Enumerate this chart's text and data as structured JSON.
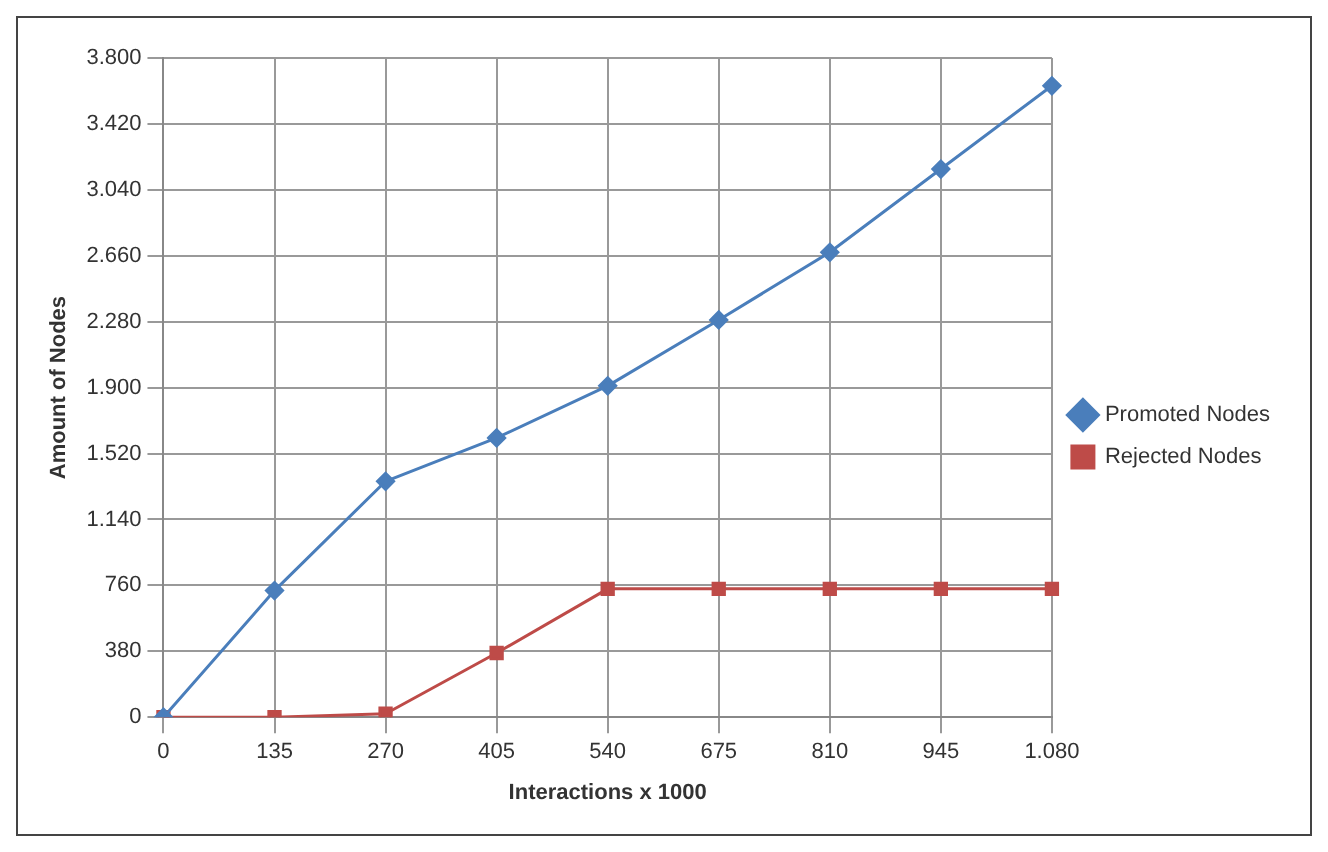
{
  "chart_data": {
    "type": "line",
    "xlabel": "Interactions x 1000",
    "ylabel": "Amount of Nodes",
    "categories": [
      "0",
      "135",
      "270",
      "405",
      "540",
      "675",
      "810",
      "945",
      "1.080"
    ],
    "series": [
      {
        "name": "Promoted Nodes",
        "color": "#4a7ebb",
        "marker": "diamond",
        "values": [
          0,
          730,
          1360,
          1610,
          1910,
          2290,
          2680,
          3160,
          3640
        ]
      },
      {
        "name": "Rejected Nodes",
        "color": "#be4b48",
        "marker": "square",
        "values": [
          0,
          0,
          20,
          370,
          740,
          740,
          740,
          740,
          740
        ]
      }
    ],
    "ylim": [
      0,
      3800
    ],
    "yticks": [
      0,
      380,
      760,
      {
        "value": 1140,
        "label": "1.140"
      },
      {
        "value": 1520,
        "label": "1.520"
      },
      {
        "value": 1900,
        "label": "1.900"
      },
      {
        "value": 2280,
        "label": "2.280"
      },
      {
        "value": 2660,
        "label": "2.660"
      },
      {
        "value": 3040,
        "label": "3.040"
      },
      {
        "value": 3420,
        "label": "3.420"
      },
      {
        "value": 3800,
        "label": "3.800"
      }
    ],
    "grid": true,
    "legend": "right",
    "line_style": "solid"
  }
}
